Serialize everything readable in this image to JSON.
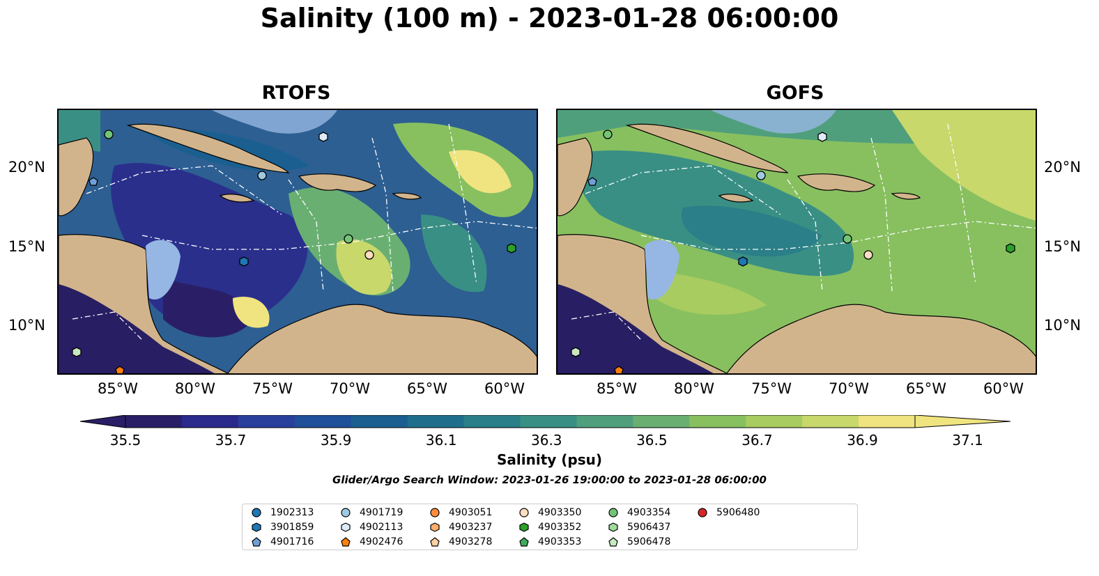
{
  "title": "Salinity (100 m) - 2023-01-28 06:00:00",
  "panels": [
    {
      "title": "RTOFS"
    },
    {
      "title": "GOFS"
    }
  ],
  "axes": {
    "lon_labels": [
      "85°W",
      "80°W",
      "75°W",
      "70°W",
      "65°W",
      "60°W"
    ],
    "lat_labels": [
      "20°N",
      "15°N",
      "10°N"
    ]
  },
  "colorbar": {
    "title": "Salinity (psu)",
    "tick_labels": [
      "35.5",
      "35.7",
      "35.9",
      "36.1",
      "36.3",
      "36.5",
      "36.7",
      "36.9",
      "37.1"
    ],
    "colors": [
      "#2a1f66",
      "#2a2a8c",
      "#2a3f9c",
      "#1f4f99",
      "#1a5f90",
      "#1f6f8c",
      "#2a7f88",
      "#3a8f84",
      "#4f9f7c",
      "#6aaf72",
      "#88c060",
      "#a8cc60",
      "#c8d86a",
      "#f0e480"
    ]
  },
  "search_window": "Glider/Argo Search Window: 2023-01-26 19:00:00 to 2023-01-28 06:00:00",
  "legend": [
    {
      "id": "1902313",
      "marker": "circle",
      "color": "#1f77b4"
    },
    {
      "id": "3901859",
      "marker": "hexagon",
      "color": "#1f77b4"
    },
    {
      "id": "4901716",
      "marker": "pentagon",
      "color": "#6f9fd8"
    },
    {
      "id": "4901719",
      "marker": "circle",
      "color": "#9ecae1"
    },
    {
      "id": "4902113",
      "marker": "hexagon",
      "color": "#deebf7"
    },
    {
      "id": "4902476",
      "marker": "pentagon",
      "color": "#ff7f0e"
    },
    {
      "id": "4903051",
      "marker": "circle",
      "color": "#fd8d3c"
    },
    {
      "id": "4903237",
      "marker": "hexagon",
      "color": "#fdae6b"
    },
    {
      "id": "4903278",
      "marker": "pentagon",
      "color": "#fdd0a2"
    },
    {
      "id": "4903350",
      "marker": "circle",
      "color": "#feddc0"
    },
    {
      "id": "4903352",
      "marker": "hexagon",
      "color": "#2ca02c"
    },
    {
      "id": "4903353",
      "marker": "pentagon",
      "color": "#41ab5d"
    },
    {
      "id": "4903354",
      "marker": "circle",
      "color": "#74c476"
    },
    {
      "id": "5906437",
      "marker": "hexagon",
      "color": "#a1d99b"
    },
    {
      "id": "5906478",
      "marker": "pentagon",
      "color": "#c7e9c0"
    },
    {
      "id": "5906480",
      "marker": "circle",
      "color": "#d62728"
    }
  ]
}
